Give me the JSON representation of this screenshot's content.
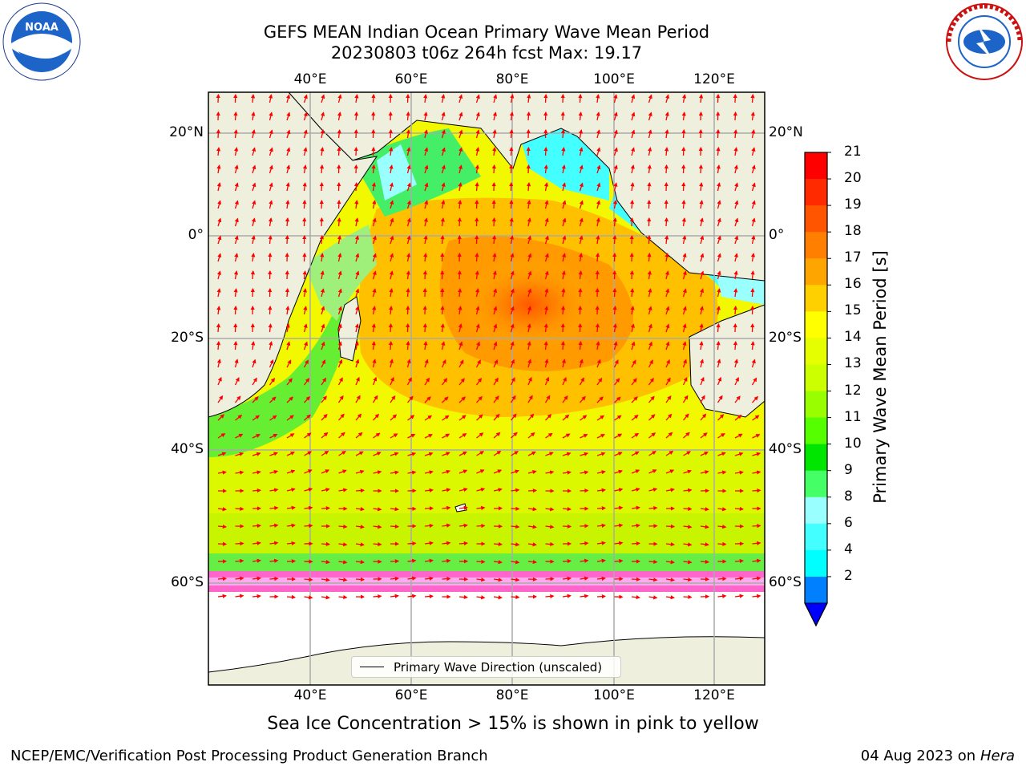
{
  "header": {
    "title_line1": "GEFS MEAN Indian Ocean Primary Wave Mean Period",
    "title_line2": "20230803 t06z 264h fcst   Max: 19.17"
  },
  "axes": {
    "lon_labels": [
      "40°E",
      "60°E",
      "80°E",
      "100°E",
      "120°E"
    ],
    "lat_labels": [
      "20°N",
      "0°",
      "20°S",
      "40°S",
      "60°S"
    ]
  },
  "legend": {
    "label": "Primary Wave Direction (unscaled)"
  },
  "colorbar": {
    "label": "Primary Wave Mean Period [s]",
    "ticks": [
      "21",
      "20",
      "19",
      "18",
      "17",
      "16",
      "15",
      "14",
      "13",
      "12",
      "11",
      "10",
      "9",
      "8",
      "6",
      "4",
      "2"
    ],
    "colors": [
      "#ff0000",
      "#ff2a00",
      "#ff5500",
      "#ff7f00",
      "#ffa500",
      "#ffd000",
      "#ffff00",
      "#e6ff00",
      "#ccff00",
      "#99ff00",
      "#55ff00",
      "#00e600",
      "#44ff66",
      "#99ffff",
      "#44ffff",
      "#00ffff",
      "#0080ff"
    ],
    "under_color": "#0000ff"
  },
  "footer": {
    "note": "Sea Ice Concentration > 15% is shown in pink to yellow",
    "credit": "NCEP/EMC/Verification Post Processing Product Generation Branch",
    "date": "04 Aug 2023 on",
    "host": "Hera"
  },
  "logos": {
    "left": "noaa-logo",
    "right": "nws-logo"
  }
}
